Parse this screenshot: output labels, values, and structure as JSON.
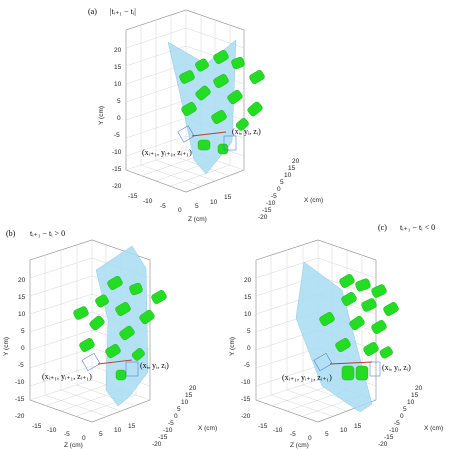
{
  "panels": [
    {
      "id": "a",
      "label": "(a)",
      "caption": "|tᵢ₊₁ − tᵢ|",
      "point_current": "(xᵢ, yᵢ, zᵢ)",
      "point_next": "(xᵢ₊₁, yᵢ₊₁, zᵢ₊₁)",
      "ylabel": "Y (cm)",
      "xlabel": "X (cm)",
      "zlabel": "Z (cm)",
      "y_ticks": [
        "20",
        "15",
        "10",
        "5",
        "0",
        "-5",
        "-10",
        "-15",
        "-20"
      ],
      "z_ticks": [
        "-15",
        "-10",
        "-5",
        "0",
        "5",
        "10",
        "15"
      ],
      "x_ticks": [
        "-20",
        "-15",
        "-10",
        "-5",
        "0",
        "5",
        "10",
        "15",
        "20"
      ]
    },
    {
      "id": "b",
      "label": "(b)",
      "caption": "tᵢ₊₁ − tᵢ > 0",
      "point_current": "(xᵢ, yᵢ, zᵢ)",
      "point_next": "(xᵢ₊₁, yᵢ₊₁, zᵢ₊₁)",
      "ylabel": "Y (cm)",
      "xlabel": "X (cm)",
      "zlabel": "Z (cm)",
      "y_ticks": [
        "20",
        "15",
        "10",
        "5",
        "0",
        "-5",
        "-10",
        "-15",
        "-20"
      ],
      "z_ticks": [
        "-15",
        "-10",
        "-5",
        "0",
        "5",
        "10",
        "15"
      ],
      "x_ticks": [
        "-20",
        "-15",
        "-10",
        "-5",
        "0",
        "5",
        "10",
        "15",
        "20"
      ]
    },
    {
      "id": "c",
      "label": "(c)",
      "caption": "tᵢ₊₁ − tᵢ < 0",
      "point_current": "(xᵢ, yᵢ, zᵢ)",
      "point_next": "(xᵢ₊₁, yᵢ₊₁, zᵢ₊₁)",
      "ylabel": "Y (cm)",
      "xlabel": "X (cm)",
      "zlabel": "Z (cm)",
      "y_ticks": [
        "20",
        "15",
        "10",
        "5",
        "0",
        "-5",
        "-10",
        "-15",
        "-20"
      ],
      "z_ticks": [
        "-15",
        "-10",
        "-5",
        "0",
        "5",
        "10",
        "15"
      ],
      "x_ticks": [
        "-20",
        "-15",
        "-10",
        "-5",
        "0",
        "5",
        "10",
        "15",
        "20"
      ]
    }
  ],
  "colors": {
    "cylinders": "#22dd22",
    "plane": "#a9dcf3",
    "ghost_cylinder": "#3a6fd6",
    "vector": "#c0392b"
  }
}
